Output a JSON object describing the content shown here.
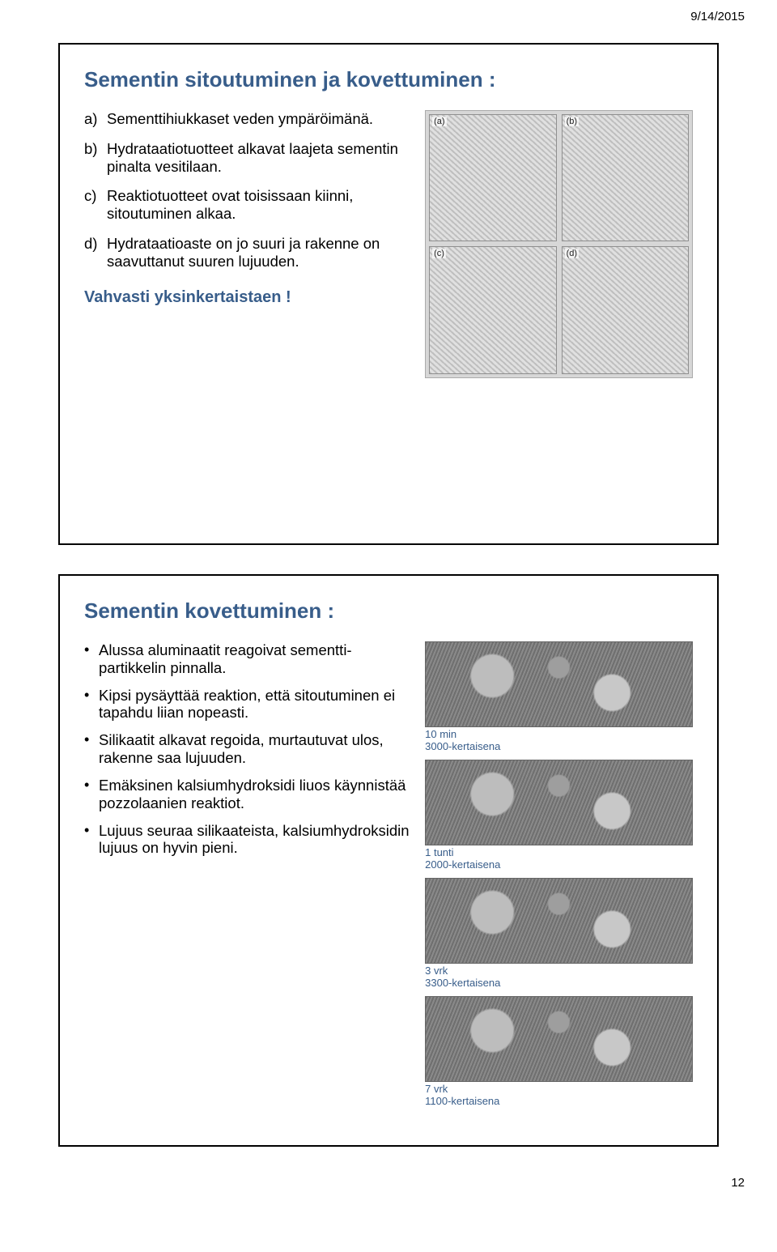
{
  "page": {
    "header_date": "9/14/2015",
    "number": "12"
  },
  "colors": {
    "heading": "#385d8a",
    "body_text": "#000000",
    "frame_border": "#000000",
    "background": "#ffffff"
  },
  "typography": {
    "title_fontsize_pt": 20,
    "body_fontsize_pt": 14,
    "caption_fontsize_pt": 10,
    "font_family": "Arial"
  },
  "slide1": {
    "title": "Sementin sitoutuminen ja kovettuminen :",
    "items": [
      {
        "marker": "a)",
        "text": "Sementtihiukkaset veden ympäröimänä."
      },
      {
        "marker": "b)",
        "text": "Hydrataatiotuotteet alkavat laajeta sementin pinalta vesitilaan."
      },
      {
        "marker": "c)",
        "text": "Reaktiotuotteet ovat toisissaan kiinni, sitoutuminen alkaa."
      },
      {
        "marker": "d)",
        "text": "Hydrataatioaste on jo suuri ja rakenne on saavuttanut suuren lujuuden."
      }
    ],
    "footer_line": "Vahvasti yksinkertaistaen !",
    "figure": {
      "type": "image-grid",
      "rows": 2,
      "cols": 2,
      "cell_tags": [
        "(a)",
        "(b)",
        "(c)",
        "(d)"
      ],
      "description": "Schematic grayscale drawings of cement particles during hydration stages a–d."
    }
  },
  "slide2": {
    "title": "Sementin kovettuminen :",
    "bullets": [
      "Alussa aluminaatit reagoivat sementti-partikkelin pinnalla.",
      "Kipsi pysäyttää reaktion, että sitoutuminen ei tapahdu liian nopeasti.",
      "Silikaatit alkavat regoida, murtautuvat ulos, rakenne saa lujuuden.",
      "Emäksinen kalsiumhydroksidi liuos käynnistää pozzolaanien reaktiot.",
      "Lujuus seuraa silikaateista, kalsiumhydroksidin lujuus on hyvin pieni."
    ],
    "sem_images": [
      {
        "caption_line1": "10 min",
        "caption_line2": "3000-kertaisena"
      },
      {
        "caption_line1": "1 tunti",
        "caption_line2": "2000-kertaisena"
      },
      {
        "caption_line1": "3 vrk",
        "caption_line2": "3300-kertaisena"
      },
      {
        "caption_line1": "7 vrk",
        "caption_line2": "1100-kertaisena"
      }
    ],
    "caption_color": "#385d8a"
  }
}
